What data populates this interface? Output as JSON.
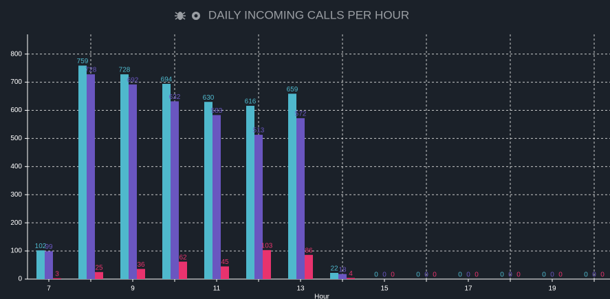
{
  "chart_data": {
    "type": "bar",
    "title": "DAILY INCOMING CALLS PER HOUR",
    "x_label": "Hour",
    "categories": [
      7,
      null,
      9,
      null,
      11,
      null,
      13,
      null,
      15,
      null,
      17,
      null,
      19,
      null
    ],
    "series": [
      {
        "color": "#4fb8cc",
        "values": [
          102,
          759,
          728,
          694,
          630,
          616,
          659,
          22,
          0,
          0,
          0,
          0,
          0,
          0
        ]
      },
      {
        "color": "#6a56c0",
        "values": [
          99,
          728,
          692,
          632,
          583,
          513,
          572,
          18,
          0,
          0,
          0,
          0,
          0,
          0
        ]
      },
      {
        "color": "#e8336e",
        "values": [
          3,
          25,
          36,
          62,
          45,
          103,
          86,
          4,
          0,
          0,
          0,
          0,
          0,
          0
        ]
      }
    ],
    "ylim": [
      0,
      870
    ],
    "yticks": [
      0,
      100,
      200,
      300,
      400,
      500,
      600,
      700,
      800
    ],
    "grid": true
  }
}
